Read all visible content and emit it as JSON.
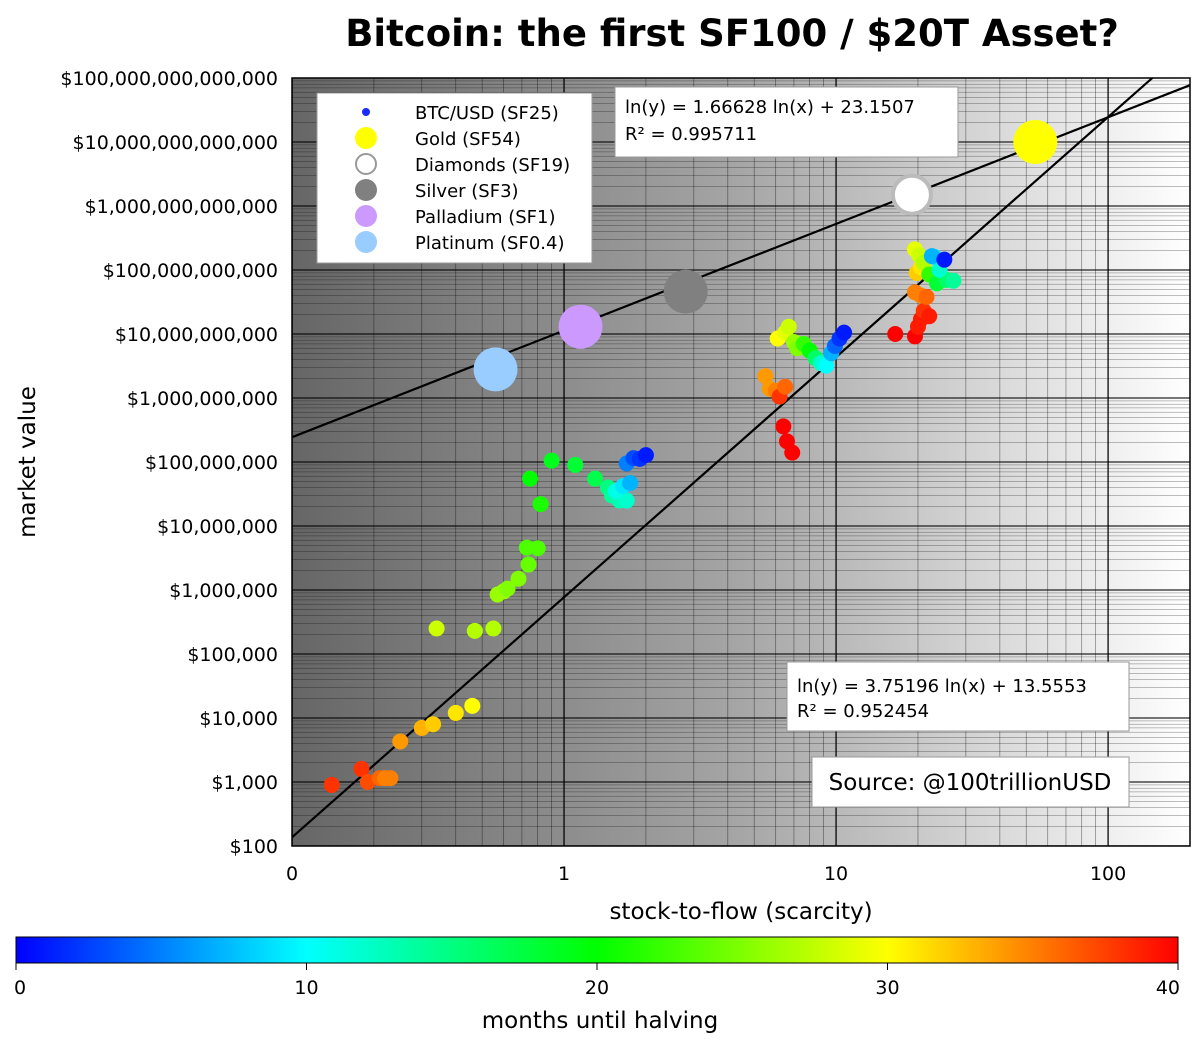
{
  "chart_data": {
    "type": "scatter",
    "title": "Bitcoin: the first SF100 / $20T Asset?",
    "xlabel": "stock-to-flow (scarcity)",
    "ylabel": "market value",
    "x_scale": "log",
    "y_scale": "log",
    "xlim": [
      0.1,
      200
    ],
    "ylim": [
      100,
      100000000000000
    ],
    "x_ticks": [
      {
        "value": 0.1,
        "label": "0"
      },
      {
        "value": 1,
        "label": "1"
      },
      {
        "value": 10,
        "label": "10"
      },
      {
        "value": 100,
        "label": "100"
      }
    ],
    "y_ticks": [
      {
        "value": 100,
        "label": "$100"
      },
      {
        "value": 1000,
        "label": "$1,000"
      },
      {
        "value": 10000,
        "label": "$10,000"
      },
      {
        "value": 100000,
        "label": "$100,000"
      },
      {
        "value": 1000000,
        "label": "$1,000,000"
      },
      {
        "value": 10000000,
        "label": "$10,000,000"
      },
      {
        "value": 100000000,
        "label": "$100,000,000"
      },
      {
        "value": 1000000000,
        "label": "$1,000,000,000"
      },
      {
        "value": 10000000000,
        "label": "$10,000,000,000"
      },
      {
        "value": 100000000000,
        "label": "$100,000,000,000"
      },
      {
        "value": 1000000000000,
        "label": "$1,000,000,000,000"
      },
      {
        "value": 10000000000000,
        "label": "$10,000,000,000,000"
      },
      {
        "value": 100000000000000,
        "label": "$100,000,000,000,000"
      }
    ],
    "grid": true,
    "legend_position": "top-left",
    "legend": [
      {
        "label": "BTC/USD (SF25)",
        "color": "#1a2cff",
        "marker": "small"
      },
      {
        "label": "Gold (SF54)",
        "color": "#ffff00",
        "marker": "large"
      },
      {
        "label": "Diamonds (SF19)",
        "color": "#ffffff",
        "marker": "large-outline"
      },
      {
        "label": "Silver (SF3)",
        "color": "#808080",
        "marker": "large"
      },
      {
        "label": "Palladium (SF1)",
        "color": "#cc99ff",
        "marker": "large"
      },
      {
        "label": "Platinum (SF0.4)",
        "color": "#99ccff",
        "marker": "large"
      }
    ],
    "assets": [
      {
        "name": "Gold (SF54)",
        "x": 54,
        "y": 10000000000000,
        "color": "#ffff00"
      },
      {
        "name": "Diamonds (SF19)",
        "x": 19,
        "y": 1500000000000,
        "color": "#ffffff"
      },
      {
        "name": "Silver (SF3)",
        "x": 2.8,
        "y": 46000000000,
        "color": "#808080"
      },
      {
        "name": "Palladium (SF1)",
        "x": 1.15,
        "y": 13000000000,
        "color": "#cc99ff"
      },
      {
        "name": "Platinum (SF0.4)",
        "x": 0.56,
        "y": 2800000000,
        "color": "#99ccff"
      }
    ],
    "btc_points": [
      {
        "x": 0.14,
        "y": 900,
        "m": 38
      },
      {
        "x": 0.18,
        "y": 1600,
        "m": 38
      },
      {
        "x": 0.19,
        "y": 1000,
        "m": 37
      },
      {
        "x": 0.21,
        "y": 1150,
        "m": 36
      },
      {
        "x": 0.22,
        "y": 1150,
        "m": 35
      },
      {
        "x": 0.23,
        "y": 1150,
        "m": 35
      },
      {
        "x": 0.25,
        "y": 4300,
        "m": 34
      },
      {
        "x": 0.3,
        "y": 7000,
        "m": 33
      },
      {
        "x": 0.33,
        "y": 8000,
        "m": 32
      },
      {
        "x": 0.4,
        "y": 12000,
        "m": 31
      },
      {
        "x": 0.46,
        "y": 15500,
        "m": 30
      },
      {
        "x": 0.34,
        "y": 250000,
        "m": 28
      },
      {
        "x": 0.47,
        "y": 230000,
        "m": 27
      },
      {
        "x": 0.55,
        "y": 250000,
        "m": 27
      },
      {
        "x": 0.57,
        "y": 850000,
        "m": 26
      },
      {
        "x": 0.6,
        "y": 950000,
        "m": 26
      },
      {
        "x": 0.62,
        "y": 1050000,
        "m": 25
      },
      {
        "x": 0.68,
        "y": 1500000,
        "m": 25
      },
      {
        "x": 0.74,
        "y": 2500000,
        "m": 24
      },
      {
        "x": 0.73,
        "y": 4600000,
        "m": 23
      },
      {
        "x": 0.8,
        "y": 4500000,
        "m": 23
      },
      {
        "x": 0.82,
        "y": 22000000,
        "m": 21
      },
      {
        "x": 0.75,
        "y": 55000000,
        "m": 20
      },
      {
        "x": 0.9,
        "y": 105000000,
        "m": 19
      },
      {
        "x": 1.1,
        "y": 90000000,
        "m": 18
      },
      {
        "x": 1.3,
        "y": 55000000,
        "m": 17
      },
      {
        "x": 1.45,
        "y": 40000000,
        "m": 15
      },
      {
        "x": 1.5,
        "y": 30000000,
        "m": 14
      },
      {
        "x": 1.6,
        "y": 25000000,
        "m": 13
      },
      {
        "x": 1.7,
        "y": 25000000,
        "m": 12
      },
      {
        "x": 1.55,
        "y": 35000000,
        "m": 11
      },
      {
        "x": 1.65,
        "y": 42000000,
        "m": 9
      },
      {
        "x": 1.75,
        "y": 47000000,
        "m": 7
      },
      {
        "x": 1.7,
        "y": 95000000,
        "m": 5
      },
      {
        "x": 1.8,
        "y": 115000000,
        "m": 3
      },
      {
        "x": 1.9,
        "y": 112000000,
        "m": 2
      },
      {
        "x": 2.0,
        "y": 128000000,
        "m": 1
      },
      {
        "x": 5.5,
        "y": 2200000000,
        "m": 34
      },
      {
        "x": 5.7,
        "y": 1400000000,
        "m": 34
      },
      {
        "x": 6.0,
        "y": 1300000000,
        "m": 35
      },
      {
        "x": 6.2,
        "y": 1050000000,
        "m": 38
      },
      {
        "x": 6.5,
        "y": 1500000000,
        "m": 36
      },
      {
        "x": 6.4,
        "y": 360000000,
        "m": 40
      },
      {
        "x": 6.6,
        "y": 210000000,
        "m": 40
      },
      {
        "x": 6.9,
        "y": 140000000,
        "m": 40
      },
      {
        "x": 6.1,
        "y": 8500000000,
        "m": 30
      },
      {
        "x": 6.5,
        "y": 10500000000,
        "m": 29
      },
      {
        "x": 6.7,
        "y": 13000000000,
        "m": 28
      },
      {
        "x": 7.0,
        "y": 7500000000,
        "m": 26
      },
      {
        "x": 7.2,
        "y": 6000000000,
        "m": 25
      },
      {
        "x": 7.6,
        "y": 7000000000,
        "m": 22
      },
      {
        "x": 8.0,
        "y": 5500000000,
        "m": 20
      },
      {
        "x": 8.4,
        "y": 4200000000,
        "m": 16
      },
      {
        "x": 8.8,
        "y": 3500000000,
        "m": 12
      },
      {
        "x": 9.2,
        "y": 3200000000,
        "m": 10
      },
      {
        "x": 9.6,
        "y": 5000000000,
        "m": 7
      },
      {
        "x": 9.9,
        "y": 6500000000,
        "m": 4
      },
      {
        "x": 10.3,
        "y": 8500000000,
        "m": 2
      },
      {
        "x": 10.7,
        "y": 10500000000,
        "m": 1
      },
      {
        "x": 16.5,
        "y": 10000000000,
        "m": 40
      },
      {
        "x": 19.5,
        "y": 9200000000,
        "m": 40
      },
      {
        "x": 20.0,
        "y": 13000000000,
        "m": 39
      },
      {
        "x": 20.5,
        "y": 17000000000,
        "m": 39
      },
      {
        "x": 21.0,
        "y": 23000000000,
        "m": 38
      },
      {
        "x": 22.0,
        "y": 19000000000,
        "m": 39
      },
      {
        "x": 19.5,
        "y": 45000000000,
        "m": 35
      },
      {
        "x": 20.5,
        "y": 40000000000,
        "m": 35
      },
      {
        "x": 21.5,
        "y": 38000000000,
        "m": 36
      },
      {
        "x": 19.8,
        "y": 90000000000,
        "m": 32
      },
      {
        "x": 20.5,
        "y": 110000000000,
        "m": 31
      },
      {
        "x": 19.5,
        "y": 210000000000,
        "m": 29
      },
      {
        "x": 20.2,
        "y": 170000000000,
        "m": 28
      },
      {
        "x": 21.0,
        "y": 130000000000,
        "m": 27
      },
      {
        "x": 22.0,
        "y": 85000000000,
        "m": 22
      },
      {
        "x": 23.5,
        "y": 62000000000,
        "m": 18
      },
      {
        "x": 25.5,
        "y": 70000000000,
        "m": 16
      },
      {
        "x": 27.0,
        "y": 68000000000,
        "m": 14
      },
      {
        "x": 24.0,
        "y": 100000000000,
        "m": 12
      },
      {
        "x": 23.0,
        "y": 160000000000,
        "m": 9
      },
      {
        "x": 22.5,
        "y": 165000000000,
        "m": 7
      },
      {
        "x": 25.0,
        "y": 145000000000,
        "m": 1
      }
    ],
    "trendlines": [
      {
        "label": "ln(y) = 1.66628 ln(x) + 23.1507",
        "r2": "R² = 0.995711",
        "slope": 1.66628,
        "intercept": 23.1507
      },
      {
        "label": "ln(y) = 3.75196 ln(x) + 13.5553",
        "r2": "R² = 0.952454",
        "slope": 3.75196,
        "intercept": 13.5553
      }
    ],
    "source": "Source: @100trillionUSD",
    "colorbar": {
      "label": "months until halving",
      "min": 0,
      "max": 40,
      "ticks": [
        "0",
        "10",
        "20",
        "30",
        "40"
      ],
      "colors": [
        "#0000ff",
        "#00ffff",
        "#00ff00",
        "#ffff00",
        "#ff0000"
      ]
    }
  }
}
